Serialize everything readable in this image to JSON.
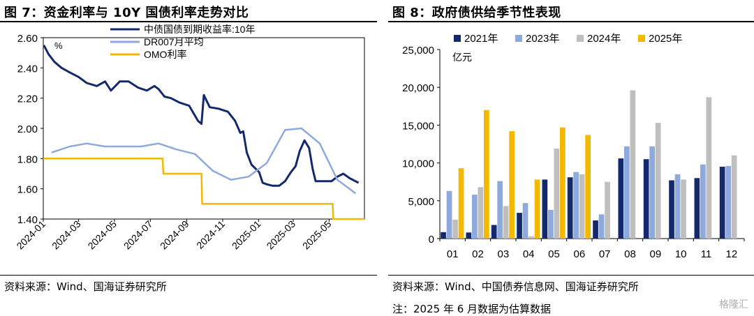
{
  "left": {
    "title": "图 7：资金利率与 10Y 国债利率走势对比",
    "source": "资料来源：Wind、国海证券研究所",
    "unit": "%",
    "colors": {
      "cgb": "#14296b",
      "dr": "#8eaadc",
      "omo": "#f5b800"
    }
  },
  "right": {
    "title": "图 8：政府债供给季节性表现",
    "source": "资料来源：Wind、中国债券信息网、国海证券研究所",
    "note": "注：2025 年 6 月数据为估算数据",
    "unit": "亿元",
    "colors": {
      "2021年": "#14296b",
      "2023年": "#8eaadc",
      "2024年": "#bfbfbf",
      "2025年": "#f5b800"
    }
  },
  "watermark": "格隆汇",
  "chart_data": [
    {
      "type": "line",
      "ylim": [
        1.4,
        2.6
      ],
      "yticks": [
        "1.40",
        "1.60",
        "1.80",
        "2.00",
        "2.20",
        "2.40",
        "2.60"
      ],
      "xticks": [
        "2024-01",
        "2024-03",
        "2024-05",
        "2024-07",
        "2024-09",
        "2024-11",
        "2025-01",
        "2025-03",
        "2025-05"
      ],
      "series": [
        {
          "name": "中债国债到期收益率:10年",
          "x": [
            "2024-01-02",
            "2024-01-10",
            "2024-01-20",
            "2024-02-01",
            "2024-02-15",
            "2024-03-01",
            "2024-03-15",
            "2024-04-01",
            "2024-04-15",
            "2024-04-25",
            "2024-05-10",
            "2024-05-25",
            "2024-06-10",
            "2024-06-25",
            "2024-07-08",
            "2024-07-15",
            "2024-07-25",
            "2024-08-05",
            "2024-08-20",
            "2024-09-05",
            "2024-09-20",
            "2024-09-26",
            "2024-09-30",
            "2024-10-10",
            "2024-10-25",
            "2024-11-10",
            "2024-11-22",
            "2024-12-01",
            "2024-12-06",
            "2024-12-12",
            "2024-12-20",
            "2025-01-02",
            "2025-01-08",
            "2025-01-15",
            "2025-01-25",
            "2025-02-05",
            "2025-02-15",
            "2025-02-25",
            "2025-03-05",
            "2025-03-12",
            "2025-03-20",
            "2025-03-28",
            "2025-04-03",
            "2025-04-08",
            "2025-04-20",
            "2025-05-05",
            "2025-05-15",
            "2025-05-25",
            "2025-06-05",
            "2025-06-20"
          ],
          "y": [
            2.55,
            2.49,
            2.44,
            2.4,
            2.37,
            2.34,
            2.3,
            2.28,
            2.31,
            2.25,
            2.31,
            2.31,
            2.27,
            2.25,
            2.28,
            2.26,
            2.21,
            2.2,
            2.17,
            2.15,
            2.05,
            2.03,
            2.22,
            2.14,
            2.13,
            2.11,
            2.05,
            1.97,
            1.98,
            1.84,
            1.76,
            1.71,
            1.64,
            1.63,
            1.62,
            1.62,
            1.65,
            1.71,
            1.75,
            1.85,
            1.92,
            1.87,
            1.73,
            1.65,
            1.65,
            1.65,
            1.68,
            1.7,
            1.67,
            1.64
          ]
        },
        {
          "name": "DR007月平均",
          "x": [
            "2024-01",
            "2024-02",
            "2024-03",
            "2024-04",
            "2024-05",
            "2024-06",
            "2024-07",
            "2024-08",
            "2024-09",
            "2024-10",
            "2024-11",
            "2024-12",
            "2025-01",
            "2025-02",
            "2025-03",
            "2025-04",
            "2025-05",
            "2025-06"
          ],
          "y": [
            1.84,
            1.88,
            1.9,
            1.88,
            1.88,
            1.88,
            1.9,
            1.86,
            1.83,
            1.72,
            1.66,
            1.68,
            1.77,
            1.99,
            2.0,
            1.9,
            1.66,
            1.57
          ]
        },
        {
          "name": "OMO利率",
          "x": [
            "2024-01-01",
            "2024-07-22",
            "2024-07-23",
            "2024-09-26",
            "2024-09-27",
            "2025-05-07",
            "2025-05-08",
            "2025-06-30"
          ],
          "y": [
            1.8,
            1.8,
            1.7,
            1.7,
            1.5,
            1.5,
            1.4,
            1.4
          ]
        }
      ]
    },
    {
      "type": "bar",
      "ylim": [
        0,
        25000
      ],
      "yticks": [
        "0",
        "5,000",
        "10,000",
        "15,000",
        "20,000",
        "25,000"
      ],
      "categories": [
        "01",
        "02",
        "03",
        "04",
        "05",
        "06",
        "07",
        "08",
        "09",
        "10",
        "11",
        "12"
      ],
      "series": [
        {
          "name": "2021年",
          "values": [
            850,
            800,
            1800,
            3400,
            7800,
            8100,
            2400,
            10600,
            10500,
            7700,
            8000,
            9500
          ]
        },
        {
          "name": "2023年",
          "values": [
            6300,
            5800,
            7600,
            4700,
            3800,
            8800,
            3200,
            12200,
            12200,
            8500,
            9800,
            9600
          ]
        },
        {
          "name": "2024年",
          "values": [
            2500,
            6800,
            4300,
            300,
            11900,
            8500,
            7500,
            19600,
            15300,
            7800,
            18700,
            11000
          ]
        },
        {
          "name": "2025年",
          "values": [
            9300,
            17000,
            14200,
            7800,
            14700,
            13700,
            null,
            null,
            null,
            null,
            null,
            null
          ]
        }
      ]
    }
  ]
}
